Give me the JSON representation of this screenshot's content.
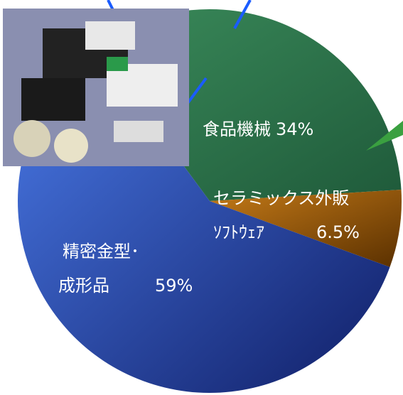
{
  "chart_data": {
    "type": "pie",
    "categories": [
      [
        "食品機械"
      ],
      [
        "セラミックス外販",
        "ｿﾌﾄｳｪｱ"
      ],
      [
        "精密金型･",
        "成形品"
      ]
    ],
    "values": [
      34,
      6.5,
      59
    ],
    "value_labels": [
      "34%",
      "6.5%",
      "59%"
    ],
    "colors": [
      "#2e7d4f",
      "#8a5208",
      "#3258c8"
    ]
  }
}
